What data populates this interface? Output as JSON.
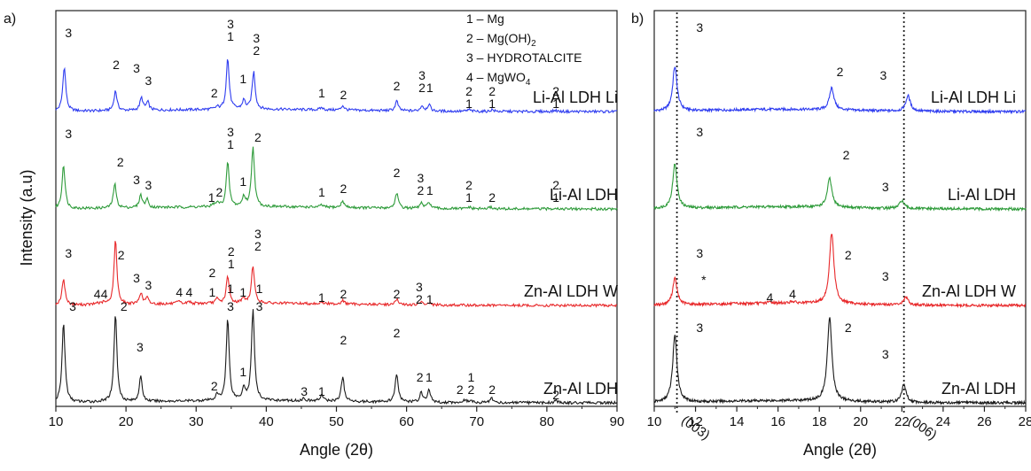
{
  "figure": {
    "ylabel": "Intensity (a.u)",
    "panel_a_label": "a)",
    "panel_b_label": "b)"
  },
  "legend": [
    {
      "num": "1",
      "text": "Mg"
    },
    {
      "num": "2",
      "text": "Mg(OH)",
      "sub": "2"
    },
    {
      "num": "3",
      "text": "HYDROTALCITE"
    },
    {
      "num": "4",
      "text": "MgWO",
      "sub": "4"
    }
  ],
  "chart_data": [
    {
      "type": "line",
      "panel": "a)",
      "xlabel": "Angle (2θ)",
      "ylabel": "Intensity (a.u)",
      "xlim": [
        10,
        90
      ],
      "xticks": [
        10,
        20,
        30,
        40,
        50,
        60,
        70,
        80,
        90
      ],
      "series": [
        {
          "name": "Li-Al LDH Li",
          "color": "#2f3df0",
          "peaks": [
            [
              11.2,
              1.0
            ],
            [
              18.5,
              0.45
            ],
            [
              22.2,
              0.28
            ],
            [
              23.1,
              0.18
            ],
            [
              33.0,
              0.05
            ],
            [
              34.5,
              1.15
            ],
            [
              36.8,
              0.2
            ],
            [
              38.2,
              0.85
            ],
            [
              47.9,
              0.05
            ],
            [
              50.9,
              0.1
            ],
            [
              58.6,
              0.22
            ],
            [
              62.2,
              0.12
            ],
            [
              63.2,
              0.15
            ],
            [
              68.9,
              0.04
            ],
            [
              72.2,
              0.04
            ],
            [
              81.2,
              0.03
            ]
          ]
        },
        {
          "name": "Li-Al LDH",
          "color": "#2e9b3a",
          "peaks": [
            [
              11.1,
              1.0
            ],
            [
              18.4,
              0.55
            ],
            [
              22.1,
              0.28
            ],
            [
              23.0,
              0.18
            ],
            [
              32.5,
              0.05
            ],
            [
              33.1,
              0.08
            ],
            [
              34.5,
              1.0
            ],
            [
              36.8,
              0.22
            ],
            [
              38.1,
              1.35
            ],
            [
              47.9,
              0.05
            ],
            [
              50.9,
              0.15
            ],
            [
              58.6,
              0.35
            ],
            [
              62.1,
              0.12
            ],
            [
              63.2,
              0.15
            ],
            [
              68.9,
              0.04
            ],
            [
              72.0,
              0.04
            ],
            [
              81.2,
              0.03
            ]
          ]
        },
        {
          "name": "Zn-Al LDH W",
          "color": "#e8282a",
          "peaks": [
            [
              11.1,
              0.6
            ],
            [
              15.9,
              0.04
            ],
            [
              16.8,
              0.04
            ],
            [
              18.5,
              1.45
            ],
            [
              22.1,
              0.25
            ],
            [
              23.0,
              0.14
            ],
            [
              27.5,
              0.05
            ],
            [
              29.0,
              0.05
            ],
            [
              33.0,
              0.1
            ],
            [
              34.5,
              0.6
            ],
            [
              36.7,
              0.12
            ],
            [
              38.1,
              0.85
            ],
            [
              47.9,
              0.04
            ],
            [
              50.9,
              0.08
            ],
            [
              58.6,
              0.12
            ],
            [
              62.1,
              0.06
            ],
            [
              63.2,
              0.05
            ]
          ]
        },
        {
          "name": "Zn-Al LDH",
          "color": "#1a1a1a",
          "peaks": [
            [
              11.1,
              1.8
            ],
            [
              18.5,
              2.0
            ],
            [
              22.1,
              0.55
            ],
            [
              33.0,
              0.12
            ],
            [
              34.5,
              1.85
            ],
            [
              36.8,
              0.28
            ],
            [
              38.1,
              2.05
            ],
            [
              45.4,
              0.06
            ],
            [
              47.9,
              0.14
            ],
            [
              50.9,
              0.55
            ],
            [
              58.6,
              0.65
            ],
            [
              62.1,
              0.22
            ],
            [
              63.2,
              0.28
            ],
            [
              68.3,
              0.06
            ],
            [
              69.1,
              0.05
            ],
            [
              72.1,
              0.12
            ],
            [
              81.3,
              0.06
            ]
          ]
        }
      ],
      "annotations": [
        {
          "text": "3",
          "x": 11.8,
          "row": 0,
          "dy": -84
        },
        {
          "text": "2",
          "x": 18.6,
          "row": 0,
          "dy": -48
        },
        {
          "text": "3",
          "x": 21.5,
          "row": 0,
          "dy": -44
        },
        {
          "text": "3",
          "x": 23.2,
          "row": 0,
          "dy": -30
        },
        {
          "text": "2",
          "x": 32.6,
          "row": 0,
          "dy": -16
        },
        {
          "text": "3",
          "x": 34.9,
          "row": 0,
          "dy": -94
        },
        {
          "text": "1",
          "x": 34.9,
          "row": 0,
          "dy": -80
        },
        {
          "text": "1",
          "x": 36.7,
          "row": 0,
          "dy": -32
        },
        {
          "text": "3",
          "x": 38.6,
          "row": 0,
          "dy": -78
        },
        {
          "text": "2",
          "x": 38.6,
          "row": 0,
          "dy": -64
        },
        {
          "text": "1",
          "x": 47.9,
          "row": 0,
          "dy": -16
        },
        {
          "text": "2",
          "x": 51.0,
          "row": 0,
          "dy": -14
        },
        {
          "text": "2",
          "x": 58.6,
          "row": 0,
          "dy": -24
        },
        {
          "text": "3",
          "x": 62.2,
          "row": 0,
          "dy": -36
        },
        {
          "text": "2",
          "x": 62.2,
          "row": 0,
          "dy": -22
        },
        {
          "text": "1",
          "x": 63.3,
          "row": 0,
          "dy": -22
        },
        {
          "text": "2",
          "x": 68.9,
          "row": 0,
          "dy": -18
        },
        {
          "text": "1",
          "x": 68.9,
          "row": 0,
          "dy": -4
        },
        {
          "text": "2",
          "x": 72.2,
          "row": 0,
          "dy": -18
        },
        {
          "text": "1",
          "x": 72.2,
          "row": 0,
          "dy": -4
        },
        {
          "text": "2",
          "x": 81.3,
          "row": 0,
          "dy": -18
        },
        {
          "text": "1",
          "x": 81.3,
          "row": 0,
          "dy": -4
        },
        {
          "text": "3",
          "x": 11.8,
          "row": 1,
          "dy": -80
        },
        {
          "text": "2",
          "x": 19.2,
          "row": 1,
          "dy": -48
        },
        {
          "text": "3",
          "x": 21.5,
          "row": 1,
          "dy": -28
        },
        {
          "text": "3",
          "x": 23.2,
          "row": 1,
          "dy": -22
        },
        {
          "text": "1",
          "x": 32.2,
          "row": 1,
          "dy": -8
        },
        {
          "text": "2",
          "x": 33.3,
          "row": 1,
          "dy": -14
        },
        {
          "text": "3",
          "x": 34.9,
          "row": 1,
          "dy": -82
        },
        {
          "text": "1",
          "x": 34.9,
          "row": 1,
          "dy": -68
        },
        {
          "text": "1",
          "x": 36.7,
          "row": 1,
          "dy": -26
        },
        {
          "text": "2",
          "x": 38.8,
          "row": 1,
          "dy": -76
        },
        {
          "text": "1",
          "x": 47.9,
          "row": 1,
          "dy": -14
        },
        {
          "text": "2",
          "x": 51.0,
          "row": 1,
          "dy": -18
        },
        {
          "text": "2",
          "x": 58.6,
          "row": 1,
          "dy": -36
        },
        {
          "text": "3",
          "x": 62.0,
          "row": 1,
          "dy": -30
        },
        {
          "text": "2",
          "x": 62.0,
          "row": 1,
          "dy": -16
        },
        {
          "text": "1",
          "x": 63.3,
          "row": 1,
          "dy": -16
        },
        {
          "text": "2",
          "x": 68.9,
          "row": 1,
          "dy": -22
        },
        {
          "text": "1",
          "x": 68.9,
          "row": 1,
          "dy": -8
        },
        {
          "text": "2",
          "x": 72.2,
          "row": 1,
          "dy": -8
        },
        {
          "text": "2",
          "x": 81.3,
          "row": 1,
          "dy": -22
        },
        {
          "text": "1",
          "x": 81.3,
          "row": 1,
          "dy": -8
        },
        {
          "text": "3",
          "x": 11.8,
          "row": 2,
          "dy": -54
        },
        {
          "text": "4",
          "x": 15.9,
          "row": 2,
          "dy": -8
        },
        {
          "text": "4",
          "x": 16.9,
          "row": 2,
          "dy": -8
        },
        {
          "text": "2",
          "x": 19.3,
          "row": 2,
          "dy": -52
        },
        {
          "text": "3",
          "x": 21.5,
          "row": 2,
          "dy": -26
        },
        {
          "text": "3",
          "x": 23.2,
          "row": 2,
          "dy": -18
        },
        {
          "text": "4",
          "x": 27.6,
          "row": 2,
          "dy": -10
        },
        {
          "text": "4",
          "x": 29.0,
          "row": 2,
          "dy": -10
        },
        {
          "text": "1",
          "x": 32.3,
          "row": 2,
          "dy": -10
        },
        {
          "text": "2",
          "x": 32.3,
          "row": 2,
          "dy": -32
        },
        {
          "text": "2",
          "x": 35.0,
          "row": 2,
          "dy": -56
        },
        {
          "text": "1",
          "x": 35.0,
          "row": 2,
          "dy": -42
        },
        {
          "text": "1",
          "x": 36.7,
          "row": 2,
          "dy": -10
        },
        {
          "text": "3",
          "x": 38.8,
          "row": 2,
          "dy": -76
        },
        {
          "text": "2",
          "x": 38.8,
          "row": 2,
          "dy": -62
        },
        {
          "text": "1",
          "x": 47.9,
          "row": 2,
          "dy": -4
        },
        {
          "text": "2",
          "x": 51.0,
          "row": 2,
          "dy": -8
        },
        {
          "text": "2",
          "x": 58.6,
          "row": 2,
          "dy": -8
        },
        {
          "text": "3",
          "x": 61.8,
          "row": 2,
          "dy": -16
        },
        {
          "text": "2",
          "x": 61.8,
          "row": 2,
          "dy": -2
        },
        {
          "text": "1",
          "x": 63.3,
          "row": 2,
          "dy": -2
        },
        {
          "text": "3",
          "x": 12.4,
          "row": 3,
          "dy": -104
        },
        {
          "text": "2",
          "x": 19.7,
          "row": 3,
          "dy": -104
        },
        {
          "text": "3",
          "x": 22.0,
          "row": 3,
          "dy": -58
        },
        {
          "text": "2",
          "x": 32.6,
          "row": 3,
          "dy": -14
        },
        {
          "text": "1",
          "x": 34.9,
          "row": 3,
          "dy": -124
        },
        {
          "text": "3",
          "x": 34.9,
          "row": 3,
          "dy": -104
        },
        {
          "text": "1",
          "x": 36.7,
          "row": 3,
          "dy": -30
        },
        {
          "text": "1",
          "x": 39.0,
          "row": 3,
          "dy": -124
        },
        {
          "text": "3",
          "x": 39.0,
          "row": 3,
          "dy": -104
        },
        {
          "text": "3",
          "x": 45.4,
          "row": 3,
          "dy": -8
        },
        {
          "text": "1",
          "x": 47.9,
          "row": 3,
          "dy": -8
        },
        {
          "text": "2",
          "x": 51.0,
          "row": 3,
          "dy": -66
        },
        {
          "text": "2",
          "x": 58.6,
          "row": 3,
          "dy": -74
        },
        {
          "text": "2",
          "x": 61.9,
          "row": 3,
          "dy": -24
        },
        {
          "text": "1",
          "x": 63.2,
          "row": 3,
          "dy": -24
        },
        {
          "text": "2",
          "x": 67.6,
          "row": 3,
          "dy": -10
        },
        {
          "text": "1",
          "x": 69.2,
          "row": 3,
          "dy": -24
        },
        {
          "text": "2",
          "x": 69.2,
          "row": 3,
          "dy": -10
        },
        {
          "text": "2",
          "x": 72.2,
          "row": 3,
          "dy": -10
        },
        {
          "text": "2",
          "x": 81.3,
          "row": 3,
          "dy": -4
        }
      ]
    },
    {
      "type": "line",
      "panel": "b)",
      "xlabel": "Angle (2θ)",
      "xlim": [
        10,
        28
      ],
      "xticks": [
        10,
        12,
        14,
        16,
        18,
        20,
        22,
        24,
        26,
        28
      ],
      "reference_lines": [
        {
          "x": 11.1,
          "label": "(003)"
        },
        {
          "x": 22.1,
          "label": "(006)"
        }
      ],
      "series": [
        {
          "name": "Li-Al LDH Li",
          "color": "#2f3df0",
          "peaks": [
            [
              11.0,
              1.0
            ],
            [
              18.6,
              0.5
            ],
            [
              22.3,
              0.35
            ]
          ]
        },
        {
          "name": "Li-Al LDH",
          "color": "#2e9b3a",
          "peaks": [
            [
              11.0,
              1.0
            ],
            [
              18.5,
              0.65
            ],
            [
              22.0,
              0.18
            ]
          ]
        },
        {
          "name": "Zn-Al LDH W",
          "color": "#e8282a",
          "peaks": [
            [
              11.0,
              0.6
            ],
            [
              15.6,
              0.03
            ],
            [
              16.7,
              0.04
            ],
            [
              18.6,
              1.6
            ],
            [
              22.2,
              0.18
            ]
          ]
        },
        {
          "name": "Zn-Al LDH",
          "color": "#1a1a1a",
          "peaks": [
            [
              11.0,
              1.5
            ],
            [
              18.5,
              1.9
            ],
            [
              22.1,
              0.4
            ]
          ]
        }
      ],
      "annotations": [
        {
          "text": "3",
          "x": 12.2,
          "row": 0,
          "dy": -90
        },
        {
          "text": "2",
          "x": 19.0,
          "row": 0,
          "dy": -40
        },
        {
          "text": "3",
          "x": 21.1,
          "row": 0,
          "dy": -36
        },
        {
          "text": "3",
          "x": 12.2,
          "row": 1,
          "dy": -82
        },
        {
          "text": "2",
          "x": 19.3,
          "row": 1,
          "dy": -56
        },
        {
          "text": "3",
          "x": 21.2,
          "row": 1,
          "dy": -20
        },
        {
          "text": "3",
          "x": 12.2,
          "row": 2,
          "dy": -54
        },
        {
          "text": "*",
          "x": 12.4,
          "row": 2,
          "dy": -24
        },
        {
          "text": "4",
          "x": 15.6,
          "row": 2,
          "dy": -4
        },
        {
          "text": "4",
          "x": 16.7,
          "row": 2,
          "dy": -8
        },
        {
          "text": "2",
          "x": 19.4,
          "row": 2,
          "dy": -52
        },
        {
          "text": "3",
          "x": 21.2,
          "row": 2,
          "dy": -28
        },
        {
          "text": "3",
          "x": 12.2,
          "row": 3,
          "dy": -80
        },
        {
          "text": "2",
          "x": 19.4,
          "row": 3,
          "dy": -80
        },
        {
          "text": "3",
          "x": 21.2,
          "row": 3,
          "dy": -50
        }
      ]
    }
  ]
}
